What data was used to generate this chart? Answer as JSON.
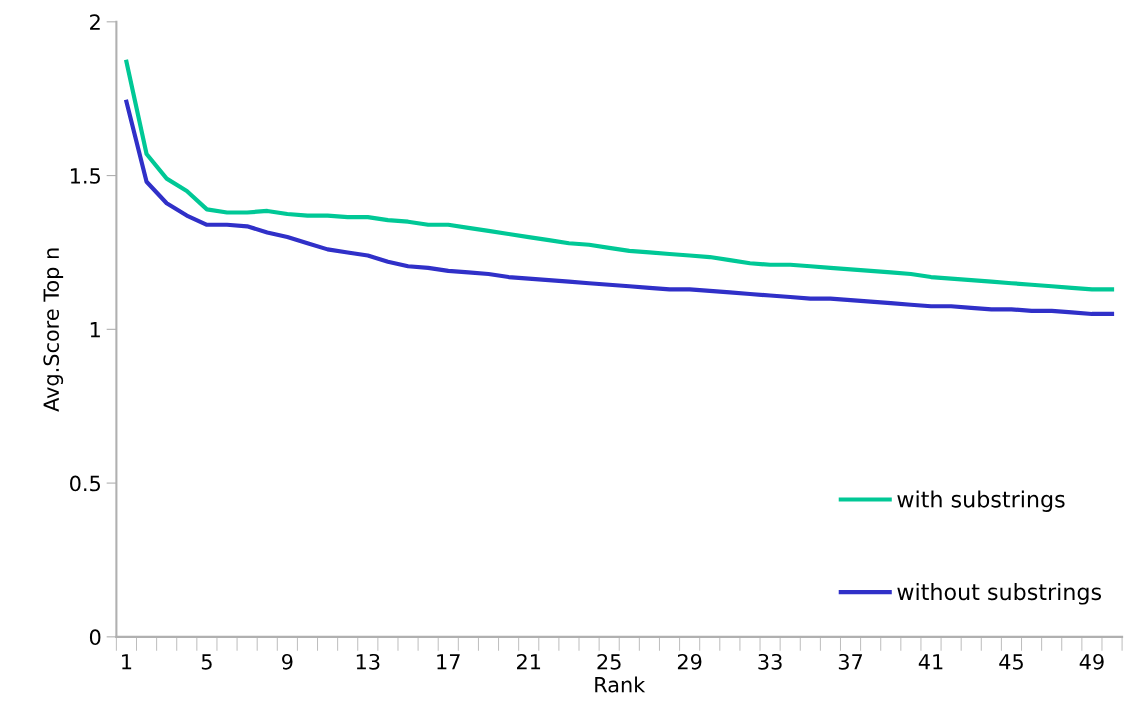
{
  "chart_data": {
    "type": "line",
    "xlabel": "Rank",
    "ylabel": "Avg.Score Top n",
    "categories": [
      "1",
      null,
      null,
      null,
      "5",
      null,
      null,
      null,
      "9",
      null,
      null,
      null,
      "13",
      null,
      null,
      null,
      "17",
      null,
      null,
      null,
      "21",
      null,
      null,
      null,
      "25",
      null,
      null,
      null,
      "29",
      null,
      null,
      null,
      "33",
      null,
      null,
      null,
      "37",
      null,
      null,
      null,
      "41",
      null,
      null,
      null,
      "45",
      null,
      null,
      null,
      "49",
      null
    ],
    "ylim": [
      0,
      2
    ],
    "yticks": [
      0,
      0.5,
      1,
      1.5,
      2
    ],
    "grid": false,
    "legend": "lower right",
    "marker": "none",
    "line_style": "solid",
    "series": [
      {
        "name": "with substrings",
        "color": "#00c896",
        "values": [
          1.87,
          1.57,
          1.49,
          1.45,
          1.39,
          1.38,
          1.38,
          1.385,
          1.375,
          1.37,
          1.37,
          1.365,
          1.365,
          1.355,
          1.35,
          1.34,
          1.34,
          1.33,
          1.32,
          1.31,
          1.3,
          1.29,
          1.28,
          1.275,
          1.265,
          1.255,
          1.25,
          1.245,
          1.24,
          1.235,
          1.225,
          1.215,
          1.21,
          1.21,
          1.205,
          1.2,
          1.195,
          1.19,
          1.185,
          1.18,
          1.17,
          1.165,
          1.16,
          1.155,
          1.15,
          1.145,
          1.14,
          1.135,
          1.13,
          1.13
        ]
      },
      {
        "name": "without substrings",
        "color": "#3030c8",
        "values": [
          1.74,
          1.48,
          1.41,
          1.37,
          1.34,
          1.34,
          1.335,
          1.315,
          1.3,
          1.28,
          1.26,
          1.25,
          1.24,
          1.22,
          1.205,
          1.2,
          1.19,
          1.185,
          1.18,
          1.17,
          1.165,
          1.16,
          1.155,
          1.15,
          1.145,
          1.14,
          1.135,
          1.13,
          1.13,
          1.125,
          1.12,
          1.115,
          1.11,
          1.105,
          1.1,
          1.1,
          1.095,
          1.09,
          1.085,
          1.08,
          1.075,
          1.075,
          1.07,
          1.065,
          1.065,
          1.06,
          1.06,
          1.055,
          1.05,
          1.05
        ]
      }
    ]
  }
}
